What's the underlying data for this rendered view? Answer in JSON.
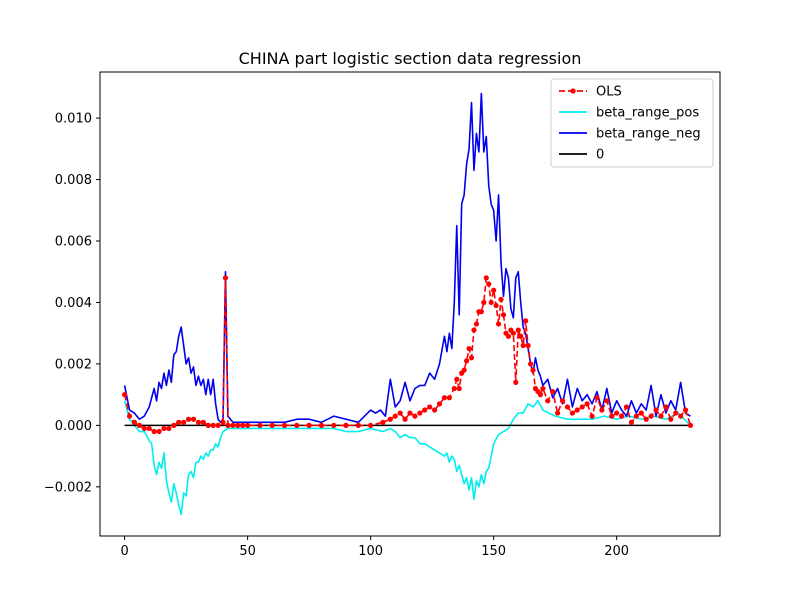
{
  "chart_data": {
    "type": "line",
    "title": "CHINA part logistic section data regression",
    "xlabel": "",
    "ylabel": "",
    "xlim": [
      -10,
      242
    ],
    "ylim": [
      -0.0036,
      0.0115
    ],
    "xticks": [
      0,
      50,
      100,
      150,
      200
    ],
    "yticks": [
      -0.002,
      0.0,
      0.002,
      0.004,
      0.006,
      0.008,
      0.01
    ],
    "ytick_labels": [
      "−0.002",
      "0.000",
      "0.002",
      "0.004",
      "0.006",
      "0.008",
      "0.010"
    ],
    "legend_position": "top-right",
    "grid": false,
    "series": [
      {
        "name": "OLS",
        "color": "#ff0000",
        "style": "dashed-marker",
        "x": [
          0,
          2,
          4,
          6,
          8,
          10,
          12,
          14,
          16,
          18,
          20,
          22,
          24,
          26,
          28,
          30,
          32,
          34,
          36,
          38,
          40,
          41,
          42,
          44,
          46,
          48,
          50,
          55,
          60,
          65,
          70,
          75,
          80,
          85,
          90,
          95,
          100,
          105,
          108,
          110,
          112,
          114,
          116,
          118,
          120,
          122,
          124,
          126,
          128,
          130,
          132,
          134,
          135,
          136,
          137,
          138,
          139,
          140,
          141,
          142,
          143,
          144,
          145,
          146,
          147,
          148,
          149,
          150,
          151,
          152,
          153,
          154,
          155,
          156,
          157,
          158,
          159,
          160,
          161,
          162,
          163,
          164,
          165,
          166,
          167,
          168,
          169,
          170,
          172,
          174,
          176,
          178,
          180,
          182,
          184,
          186,
          188,
          190,
          192,
          194,
          196,
          198,
          200,
          202,
          204,
          206,
          208,
          210,
          212,
          214,
          216,
          218,
          220,
          222,
          224,
          226,
          228,
          230
        ],
        "y": [
          0.001,
          0.0003,
          0.0001,
          0.0,
          -0.0001,
          -0.0001,
          -0.0002,
          -0.0002,
          -0.0001,
          -0.0001,
          0.0,
          0.0001,
          0.0001,
          0.0002,
          0.0002,
          0.0001,
          0.0001,
          0.0,
          0.0,
          0.0,
          0.0001,
          0.0048,
          0.0,
          0.0,
          0.0,
          0.0,
          0.0,
          0.0,
          0.0,
          0.0,
          0.0,
          0.0,
          0.0,
          0.0,
          0.0,
          0.0,
          0.0,
          0.0001,
          0.0002,
          0.0003,
          0.0004,
          0.0002,
          0.0004,
          0.0003,
          0.0004,
          0.0005,
          0.0006,
          0.0005,
          0.0007,
          0.0009,
          0.0009,
          0.0012,
          0.0015,
          0.0012,
          0.0017,
          0.0018,
          0.0021,
          0.0025,
          0.0022,
          0.0031,
          0.0033,
          0.0037,
          0.0037,
          0.004,
          0.0048,
          0.0046,
          0.004,
          0.0044,
          0.0039,
          0.0033,
          0.0041,
          0.0036,
          0.003,
          0.0029,
          0.0031,
          0.003,
          0.0014,
          0.0031,
          0.0029,
          0.0026,
          0.0034,
          0.0026,
          0.002,
          0.0018,
          0.0012,
          0.0011,
          0.001,
          0.0012,
          0.0008,
          0.0011,
          0.0004,
          0.0008,
          0.0006,
          0.0004,
          0.0005,
          0.0006,
          0.0007,
          0.0003,
          0.0009,
          0.0005,
          0.0008,
          0.0003,
          0.0004,
          0.0003,
          0.0006,
          0.0001,
          0.0003,
          0.0004,
          0.0002,
          0.0003,
          0.0005,
          0.0003,
          0.0006,
          0.0002,
          0.0004,
          0.0003,
          0.0005,
          0.0
        ]
      },
      {
        "name": "beta_range_pos",
        "color": "#00eeee",
        "style": "solid",
        "x": [
          0,
          2,
          4,
          6,
          8,
          10,
          11,
          12,
          13,
          14,
          15,
          16,
          17,
          18,
          19,
          20,
          21,
          22,
          23,
          24,
          25,
          26,
          27,
          28,
          29,
          30,
          31,
          32,
          33,
          34,
          35,
          36,
          37,
          38,
          39,
          40,
          42,
          45,
          50,
          55,
          60,
          65,
          70,
          75,
          80,
          85,
          90,
          95,
          100,
          105,
          108,
          110,
          112,
          114,
          116,
          118,
          120,
          122,
          124,
          126,
          128,
          130,
          131,
          132,
          133,
          134,
          135,
          136,
          137,
          138,
          139,
          140,
          141,
          142,
          143,
          144,
          145,
          146,
          147,
          148,
          149,
          150,
          152,
          154,
          156,
          158,
          160,
          162,
          164,
          166,
          168,
          170,
          175,
          180,
          185,
          190,
          195,
          200,
          205,
          210,
          215,
          220,
          225,
          230
        ],
        "y": [
          0.0008,
          0.0002,
          0.0,
          -0.0002,
          -0.0002,
          -0.0005,
          -0.0006,
          -0.0013,
          -0.0016,
          -0.0012,
          -0.0014,
          -0.0009,
          -0.0018,
          -0.0022,
          -0.0025,
          -0.0019,
          -0.0022,
          -0.0026,
          -0.0029,
          -0.0022,
          -0.0023,
          -0.0016,
          -0.0015,
          -0.0017,
          -0.0012,
          -0.0012,
          -0.001,
          -0.0011,
          -0.0009,
          -0.001,
          -0.0008,
          -0.0008,
          -0.0006,
          -0.0007,
          -0.0004,
          -0.0002,
          -0.0001,
          -0.0001,
          -0.0001,
          -0.0001,
          -0.0001,
          -0.0001,
          -0.0001,
          -0.0001,
          -0.0001,
          -0.0001,
          -0.0002,
          -0.0002,
          -0.0001,
          -0.0002,
          -0.0001,
          -0.0002,
          -0.0004,
          -0.0003,
          -0.0004,
          -0.0004,
          -0.0006,
          -0.0006,
          -0.0007,
          -0.0008,
          -0.0009,
          -0.001,
          -0.0009,
          -0.0012,
          -0.001,
          -0.0011,
          -0.0015,
          -0.0013,
          -0.0016,
          -0.0019,
          -0.0017,
          -0.0021,
          -0.0017,
          -0.0024,
          -0.0018,
          -0.002,
          -0.0016,
          -0.0019,
          -0.0015,
          -0.0014,
          -0.001,
          -0.0006,
          -0.0003,
          -0.0002,
          -0.0001,
          0.0002,
          0.0004,
          0.0004,
          0.0007,
          0.0006,
          0.0008,
          0.0005,
          0.0003,
          0.0002,
          0.0002,
          0.0002,
          0.0003,
          0.0002,
          0.0003,
          0.0002,
          0.0003,
          0.0002,
          0.0004,
          0.0
        ]
      },
      {
        "name": "beta_range_neg",
        "color": "#0000ee",
        "style": "solid",
        "x": [
          0,
          2,
          4,
          6,
          8,
          10,
          12,
          13,
          14,
          15,
          16,
          17,
          18,
          19,
          20,
          21,
          22,
          23,
          24,
          25,
          26,
          27,
          28,
          29,
          30,
          31,
          32,
          33,
          34,
          35,
          36,
          37,
          38,
          39,
          40,
          41,
          42,
          44,
          46,
          48,
          50,
          55,
          60,
          65,
          70,
          75,
          80,
          85,
          90,
          95,
          100,
          102,
          104,
          106,
          108,
          110,
          112,
          114,
          116,
          118,
          120,
          122,
          124,
          126,
          128,
          130,
          131,
          132,
          133,
          134,
          135,
          136,
          137,
          138,
          139,
          140,
          141,
          142,
          143,
          144,
          145,
          146,
          147,
          148,
          149,
          150,
          151,
          152,
          153,
          154,
          155,
          156,
          157,
          158,
          159,
          160,
          161,
          162,
          163,
          164,
          165,
          166,
          167,
          168,
          169,
          170,
          172,
          174,
          176,
          178,
          180,
          182,
          184,
          186,
          188,
          190,
          192,
          194,
          196,
          198,
          200,
          202,
          204,
          206,
          208,
          210,
          212,
          214,
          216,
          218,
          220,
          222,
          224,
          226,
          228,
          230
        ],
        "y": [
          0.0013,
          0.0005,
          0.0004,
          0.0002,
          0.0003,
          0.0006,
          0.0012,
          0.0008,
          0.0014,
          0.0012,
          0.0017,
          0.0013,
          0.0018,
          0.0014,
          0.0023,
          0.0024,
          0.0029,
          0.0032,
          0.0026,
          0.002,
          0.0022,
          0.0017,
          0.0019,
          0.0013,
          0.0016,
          0.0013,
          0.0015,
          0.001,
          0.0015,
          0.001,
          0.0015,
          0.0007,
          0.0002,
          0.0001,
          0.0002,
          0.005,
          0.0003,
          0.0001,
          0.0001,
          0.0001,
          0.0001,
          0.0001,
          0.0001,
          0.0001,
          0.0002,
          0.0002,
          0.0001,
          0.0003,
          0.0002,
          0.0001,
          0.0005,
          0.0004,
          0.0005,
          0.0003,
          0.0015,
          0.0006,
          0.0008,
          0.0014,
          0.0008,
          0.0012,
          0.0013,
          0.0013,
          0.0017,
          0.0015,
          0.002,
          0.0029,
          0.0024,
          0.003,
          0.0025,
          0.004,
          0.0065,
          0.0036,
          0.0072,
          0.0075,
          0.0085,
          0.009,
          0.0105,
          0.0083,
          0.0095,
          0.0089,
          0.0108,
          0.0089,
          0.0094,
          0.0078,
          0.0072,
          0.007,
          0.006,
          0.0075,
          0.0053,
          0.0042,
          0.0051,
          0.0048,
          0.0038,
          0.0035,
          0.0048,
          0.005,
          0.004,
          0.0032,
          0.003,
          0.0025,
          0.002,
          0.0017,
          0.0022,
          0.0018,
          0.0016,
          0.0013,
          0.0015,
          0.0009,
          0.0012,
          0.0007,
          0.0015,
          0.0006,
          0.0012,
          0.0008,
          0.001,
          0.0007,
          0.0011,
          0.0005,
          0.0012,
          0.0004,
          0.0008,
          0.0005,
          0.0003,
          0.0008,
          0.0004,
          0.0007,
          0.0005,
          0.0013,
          0.0003,
          0.001,
          0.0004,
          0.0008,
          0.0005,
          0.0014,
          0.0004,
          0.0003
        ]
      },
      {
        "name": "0",
        "color": "#000000",
        "style": "solid",
        "x": [
          0,
          230
        ],
        "y": [
          0,
          0
        ]
      }
    ]
  }
}
